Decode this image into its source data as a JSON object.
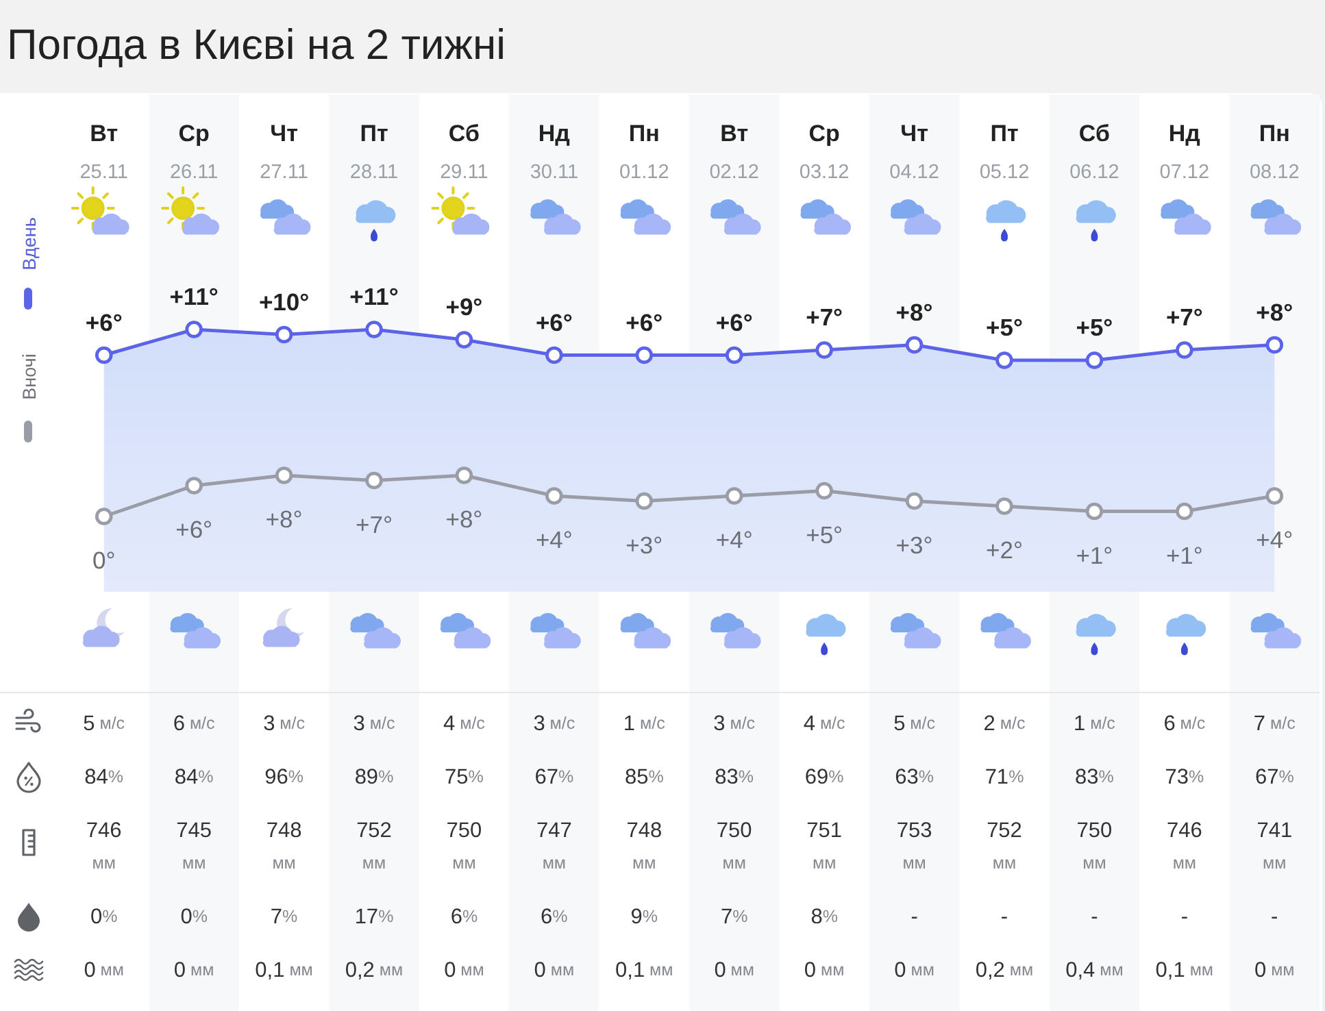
{
  "chart_data": [
    {
      "type": "line",
      "title": "Погода в Києві на 2 тижні",
      "categories": [
        "Вт\n25.11",
        "Ср\n26.11",
        "Чт\n27.11",
        "Пт\n28.11",
        "Сб\n29.11",
        "Нд\n30.11",
        "Пн\n01.12",
        "Вт\n02.12",
        "Ср\n03.12",
        "Чт\n04.12",
        "Пт\n05.12",
        "Сб\n06.12",
        "Нд\n07.12",
        "Пн\n08.12"
      ],
      "series": [
        {
          "name": "Вдень",
          "color": "#5b64e8",
          "values": [
            6,
            11,
            10,
            11,
            9,
            6,
            6,
            6,
            7,
            8,
            5,
            5,
            7,
            8
          ],
          "value_labels": [
            "+6°",
            "+11°",
            "+10°",
            "+11°",
            "+9°",
            "+6°",
            "+6°",
            "+6°",
            "+7°",
            "+8°",
            "+5°",
            "+5°",
            "+7°",
            "+8°"
          ]
        }
      ],
      "marker": "circle",
      "legend": "left"
    },
    {
      "type": "line",
      "categories": [
        null,
        null,
        null,
        null,
        null,
        null,
        null,
        null,
        null,
        null,
        null,
        null,
        null,
        null
      ],
      "series": [
        {
          "name": "Вночі",
          "color": "#9a9ca6",
          "values": [
            0,
            6,
            8,
            7,
            8,
            4,
            3,
            4,
            5,
            3,
            2,
            1,
            1,
            4
          ],
          "value_labels": [
            "0°",
            "+6°",
            "+8°",
            "+7°",
            "+8°",
            "+4°",
            "+3°",
            "+4°",
            "+5°",
            "+3°",
            "+2°",
            "+1°",
            "+1°",
            "+4°"
          ]
        }
      ],
      "marker": "circle",
      "legend": "left"
    },
    {
      "type": "other",
      "annotations": [
        "5 м/с",
        "6 м/с",
        "3 м/с",
        "3 м/с",
        "4 м/с",
        "3 м/с",
        "1 м/с",
        "3 м/с",
        "4 м/с",
        "5 м/с",
        "2 м/с",
        "1 м/с",
        "6 м/с",
        "7 м/с",
        "84%",
        "84%",
        "96%",
        "89%",
        "75%",
        "67%",
        "85%",
        "83%",
        "69%",
        "63%",
        "71%",
        "83%",
        "73%",
        "67%",
        "746\nмм",
        "745\nмм",
        "748\nмм",
        "752\nмм",
        "750\nмм",
        "747\nмм",
        "748\nмм",
        "750\nмм",
        "751\nмм",
        "753\nмм",
        "752\nмм",
        "750\nмм",
        "746\nмм",
        "741\nмм",
        "0%",
        "0%",
        "7%",
        "17%",
        "6%",
        "6%",
        "9%",
        "7%",
        "8%",
        "-",
        "-",
        "-",
        "-",
        "-",
        "0 мм",
        "0 мм",
        "0,1 мм",
        "0,2 мм",
        "0 мм",
        "0 мм",
        "0,1 мм",
        "0 мм",
        "0 мм",
        "0 мм",
        "0,2 мм",
        "0,4 мм",
        "0,1 мм",
        "0 мм"
      ]
    }
  ]
}
